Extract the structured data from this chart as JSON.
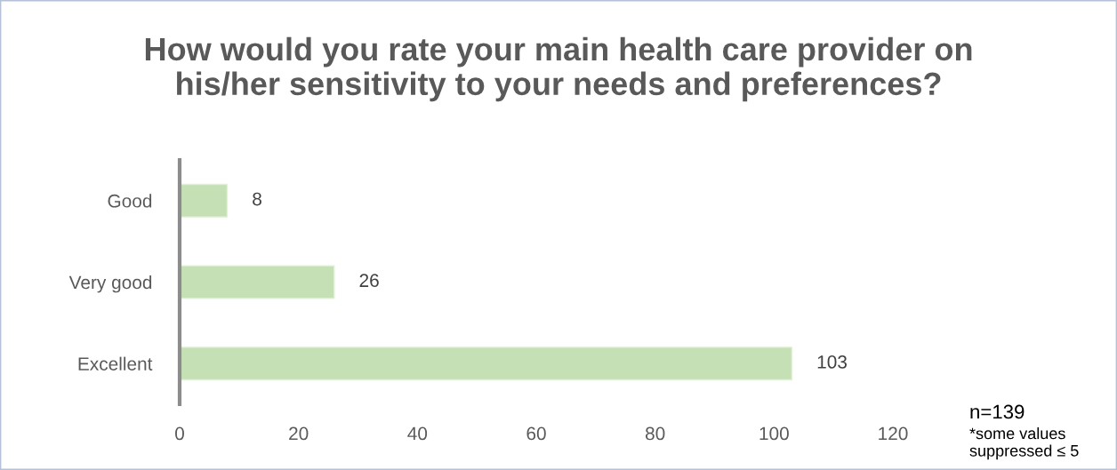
{
  "chart_data": {
    "type": "bar",
    "orientation": "horizontal",
    "title": "How would you rate your main health care provider on\nhis/her sensitivity to your needs and preferences?",
    "categories": [
      "Good",
      "Very good",
      "Excellent"
    ],
    "values": [
      8,
      26,
      103
    ],
    "color": "#c5e0b4",
    "xlim": [
      0,
      120
    ],
    "xticks": [
      0,
      20,
      40,
      60,
      80,
      100,
      120
    ],
    "data_labels": true,
    "annotations": [
      "n=139",
      "*some values\nsuppressed ≤ 5"
    ]
  }
}
